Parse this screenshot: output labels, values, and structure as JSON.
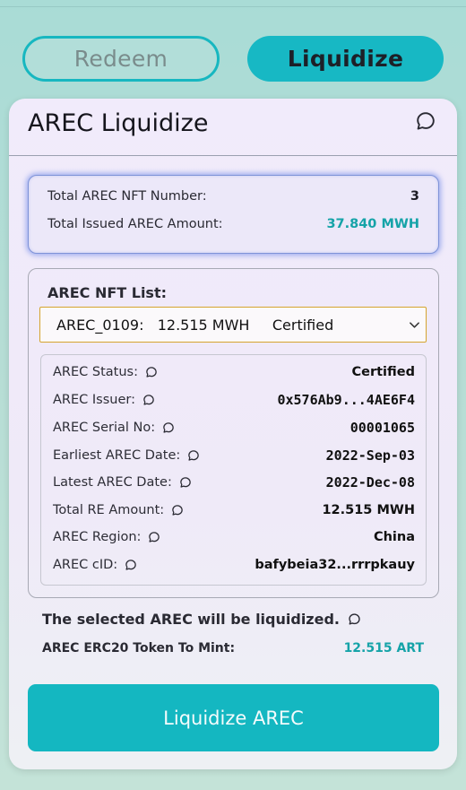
{
  "tabs": {
    "redeem_label": "Redeem",
    "liquidize_label": "Liquidize",
    "active": "Liquidize"
  },
  "card": {
    "title": "AREC Liquidize"
  },
  "summary": {
    "nft_number_label": "Total AREC NFT Number:",
    "nft_number_value": "3",
    "issued_amount_label": "Total Issued AREC Amount:",
    "issued_amount_value": "37.840 MWH"
  },
  "nft_list": {
    "label": "AREC NFT List:",
    "selected": "AREC_0109:   12.515 MWH     Certified"
  },
  "details": [
    {
      "label": "AREC Status:",
      "value": "Certified"
    },
    {
      "label": "AREC Issuer:",
      "value": "0x576Ab9...4AE6F4"
    },
    {
      "label": "AREC Serial No:",
      "value": "00001065"
    },
    {
      "label": "Earliest AREC Date:",
      "value": "2022-Sep-03"
    },
    {
      "label": "Latest AREC Date:",
      "value": "2022-Dec-08"
    },
    {
      "label": "Total RE Amount:",
      "value": "12.515 MWH"
    },
    {
      "label": "AREC Region:",
      "value": "China"
    },
    {
      "label": "AREC cID:",
      "value": "bafybeia32...rrrpkauy"
    }
  ],
  "note": {
    "text": "The selected AREC will be liquidized."
  },
  "mint": {
    "label": "AREC ERC20 Token To Mint:",
    "value": "12.515 ART"
  },
  "cta": {
    "label": "Liquidize AREC"
  },
  "colors": {
    "accent": "#14b7c1",
    "teal_text": "#15a3a8",
    "select_border": "#d5a52e"
  },
  "icons": {
    "info": "chat-bubble-icon",
    "dropdown": "chevron-down-icon"
  }
}
